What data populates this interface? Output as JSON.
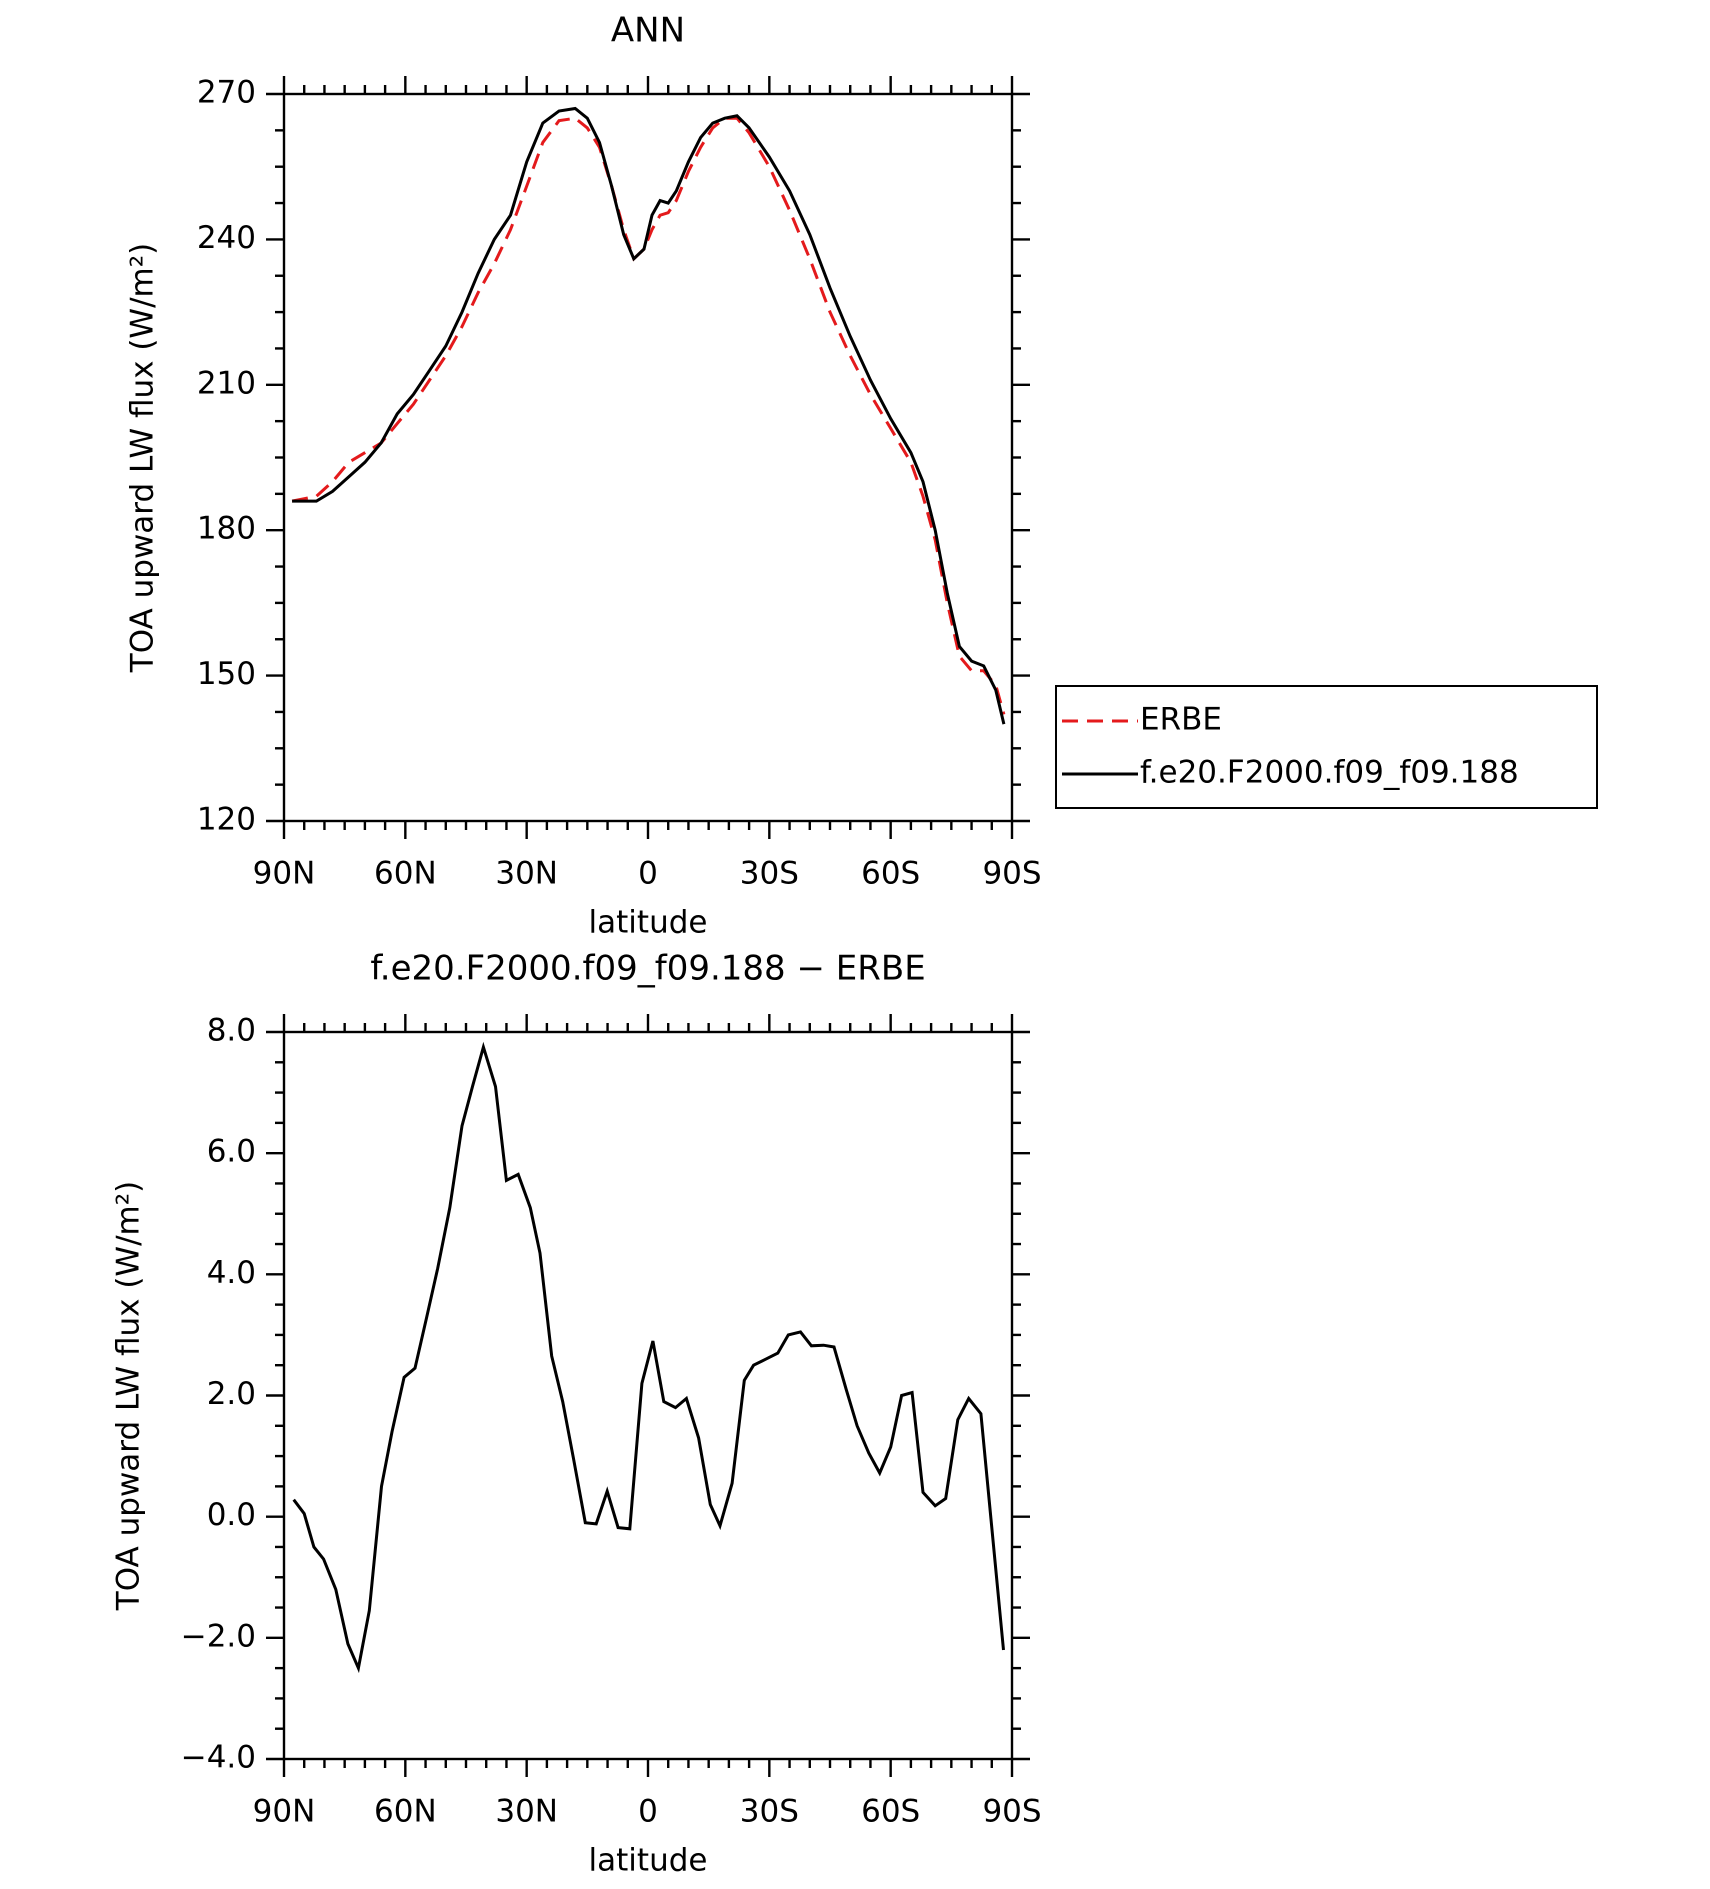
{
  "chart_data": [
    {
      "type": "line",
      "title": "ANN",
      "xlabel": "latitude",
      "ylabel": "TOA upward LW flux (W/m²)",
      "x": [
        88,
        85,
        82,
        78,
        74,
        70,
        66,
        62,
        58,
        54,
        50,
        46,
        42,
        38,
        34,
        30,
        26,
        22,
        18,
        15,
        12,
        9,
        6,
        3.5,
        1,
        -1,
        -3,
        -5,
        -7,
        -10,
        -13,
        -16,
        -19,
        -22,
        -25,
        -30,
        -35,
        -40,
        -45,
        -50,
        -55,
        -60,
        -65,
        -68,
        -71,
        -74,
        -77,
        -80,
        -83,
        -86,
        -88
      ],
      "series": [
        {
          "name": "ERBE",
          "color": "#e41a1c",
          "dash": true,
          "values": [
            186,
            186.5,
            187,
            190,
            194,
            196,
            198,
            202,
            206,
            211,
            216,
            222,
            229,
            235,
            242,
            251,
            260,
            264.5,
            265,
            263,
            259,
            251,
            242,
            236,
            238,
            242,
            245,
            245.5,
            248,
            254,
            259,
            263,
            265,
            265,
            262,
            255,
            246,
            236,
            225,
            216,
            208,
            201,
            194,
            187,
            178,
            165,
            154,
            151,
            151,
            148,
            142
          ]
        },
        {
          "name": "f.e20.F2000.f09_f09.188",
          "color": "#000000",
          "dash": false,
          "values": [
            186,
            186,
            186,
            188,
            191,
            194,
            198,
            204,
            208,
            213,
            218,
            225,
            233,
            240,
            245,
            256,
            264,
            266.5,
            267,
            265,
            260,
            251,
            241,
            236,
            238,
            245,
            248,
            247.5,
            250,
            256,
            261,
            264,
            265,
            265.5,
            263,
            257,
            250,
            241,
            230,
            220,
            211,
            203,
            196,
            190,
            180,
            167,
            156,
            153,
            152,
            147,
            140
          ]
        }
      ],
      "xlim": [
        90,
        -90
      ],
      "xticks": [
        {
          "value": 90,
          "label": "90N"
        },
        {
          "value": 60,
          "label": "60N"
        },
        {
          "value": 30,
          "label": "30N"
        },
        0,
        {
          "value": -30,
          "label": "30S"
        },
        {
          "value": -60,
          "label": "60S"
        },
        {
          "value": -90,
          "label": "90S"
        }
      ],
      "ylim": [
        120,
        270
      ],
      "yticks": [
        120,
        150,
        180,
        210,
        240,
        270
      ],
      "legend": "right"
    },
    {
      "type": "line",
      "title": "f.e20.F2000.f09_f09.188 − ERBE",
      "xlabel": "latitude",
      "ylabel": "TOA upward LW flux (W/m²)",
      "x": [
        87.6,
        85,
        82.6,
        80.2,
        77.2,
        74.2,
        71.6,
        68.9,
        65.9,
        63.3,
        60.3,
        57.6,
        54.7,
        52,
        49,
        46,
        43.4,
        40.7,
        37.7,
        35,
        32.1,
        29.1,
        26.7,
        23.8,
        21.1,
        18.4,
        15.5,
        12.8,
        10.1,
        7.4,
        4.5,
        1.5,
        -1.2,
        -3.9,
        -6.8,
        -9.5,
        -12.5,
        -15.4,
        -17.8,
        -20.8,
        -23.8,
        -26.1,
        -29.1,
        -32.1,
        -34.7,
        -37.7,
        -40.4,
        -43.4,
        -46,
        -49,
        -51.7,
        -54.6,
        -57.3,
        -60,
        -62.7,
        -65.3,
        -68,
        -71,
        -73.6,
        -76.6,
        -79.3,
        -82.3,
        -87.9
      ],
      "series": [
        {
          "color": "#000000",
          "values": [
            0.28,
            0.05,
            -0.5,
            -0.7,
            -1.2,
            -2.1,
            -2.5,
            -1.55,
            0.5,
            1.4,
            2.3,
            2.45,
            3.3,
            4.1,
            5.1,
            6.45,
            7.1,
            7.75,
            7.1,
            5.55,
            5.65,
            5.1,
            4.35,
            2.65,
            1.9,
            0.95,
            -0.1,
            -0.12,
            0.42,
            -0.18,
            -0.2,
            2.2,
            2.9,
            1.9,
            1.8,
            1.95,
            1.3,
            0.2,
            -0.15,
            0.55,
            2.25,
            2.5,
            2.6,
            2.7,
            3.0,
            3.05,
            2.82,
            2.83,
            2.8,
            2.1,
            1.5,
            1.05,
            0.72,
            1.15,
            2.0,
            2.05,
            0.4,
            0.18,
            0.3,
            1.6,
            1.95,
            1.7,
            -2.2
          ]
        }
      ],
      "xlim": [
        90,
        -90
      ],
      "xticks": [
        {
          "value": 90,
          "label": "90N"
        },
        {
          "value": 60,
          "label": "60N"
        },
        {
          "value": 30,
          "label": "30N"
        },
        0,
        {
          "value": -30,
          "label": "30S"
        },
        {
          "value": -60,
          "label": "60S"
        },
        {
          "value": -90,
          "label": "90S"
        }
      ],
      "ylim": [
        -4,
        8
      ],
      "yticks": [
        {
          "value": -4,
          "label": "−4.0"
        },
        {
          "value": -2,
          "label": "−2.0"
        },
        {
          "value": 0,
          "label": "0.0"
        },
        {
          "value": 2,
          "label": "2.0"
        },
        {
          "value": 4,
          "label": "4.0"
        },
        {
          "value": 6,
          "label": "6.0"
        },
        {
          "value": 8,
          "label": "8.0"
        }
      ]
    }
  ]
}
